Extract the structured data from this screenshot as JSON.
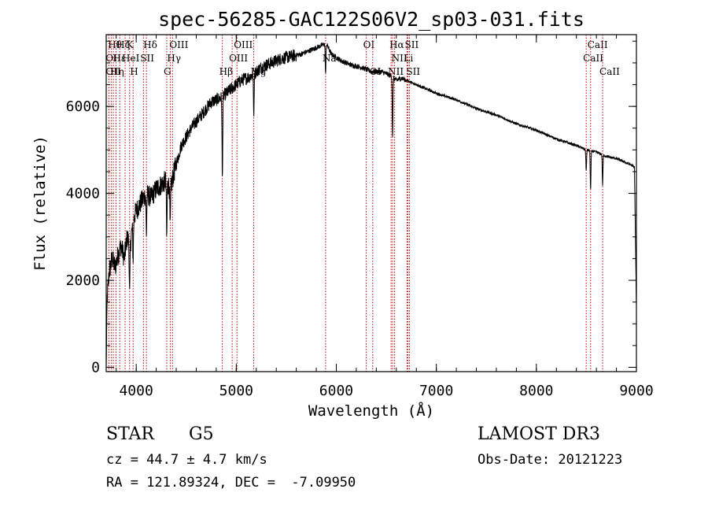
{
  "chart_data": {
    "type": "line",
    "title": "spec-56285-GAC122S06V2_sp03-031.fits",
    "xlabel": "Wavelength (Å)",
    "ylabel": "Flux (relative)",
    "xlim": [
      3700,
      9000
    ],
    "ylim": [
      -100,
      7650
    ],
    "x_ticks": [
      4000,
      5000,
      6000,
      7000,
      8000,
      9000
    ],
    "y_ticks": [
      0,
      2000,
      4000,
      6000
    ],
    "series": [
      {
        "name": "spectrum",
        "x": [
          3700,
          3710,
          3730,
          3760,
          3790,
          3820,
          3850,
          3880,
          3910,
          3940,
          3970,
          4000,
          4050,
          4100,
          4150,
          4200,
          4250,
          4300,
          4340,
          4380,
          4450,
          4550,
          4650,
          4750,
          4850,
          4950,
          5050,
          5150,
          5250,
          5350,
          5450,
          5550,
          5650,
          5750,
          5850,
          5900,
          5950,
          6050,
          6150,
          6250,
          6350,
          6450,
          6500,
          6550,
          6600,
          6650,
          6700,
          6800,
          6900,
          7000,
          7200,
          7400,
          7600,
          7800,
          8000,
          8200,
          8400,
          8500,
          8600,
          8700,
          8800,
          8900,
          8950,
          8980,
          9000
        ],
        "y": [
          0,
          1600,
          2200,
          2500,
          2300,
          2600,
          2800,
          2500,
          3000,
          2800,
          3400,
          3600,
          3800,
          4000,
          3900,
          4100,
          4200,
          4300,
          4100,
          4500,
          5100,
          5500,
          5800,
          6100,
          6200,
          6400,
          6600,
          6700,
          6900,
          7000,
          7100,
          7150,
          7200,
          7300,
          7400,
          7450,
          7200,
          7050,
          6950,
          6900,
          6800,
          6800,
          6750,
          6700,
          6600,
          6650,
          6600,
          6500,
          6400,
          6300,
          6150,
          5950,
          5800,
          5600,
          5450,
          5250,
          5100,
          5000,
          4950,
          4850,
          4800,
          4700,
          4650,
          4600,
          1400
        ]
      }
    ],
    "absorption_features": [
      {
        "wavelength": 3934,
        "depth": 1200
      },
      {
        "wavelength": 3969,
        "depth": 900
      },
      {
        "wavelength": 4102,
        "depth": 900
      },
      {
        "wavelength": 4305,
        "depth": 1300
      },
      {
        "wavelength": 4340,
        "depth": 900
      },
      {
        "wavelength": 4861,
        "depth": 1900
      },
      {
        "wavelength": 5175,
        "depth": 900
      },
      {
        "wavelength": 5893,
        "depth": 700
      },
      {
        "wavelength": 6563,
        "depth": 1400
      },
      {
        "wavelength": 8498,
        "depth": 500
      },
      {
        "wavelength": 8542,
        "depth": 900
      },
      {
        "wavelength": 8662,
        "depth": 700
      }
    ],
    "line_markers": [
      {
        "wavelength": 3727,
        "label": "OII",
        "row": 2
      },
      {
        "wavelength": 3727,
        "label": "OII",
        "row": 3
      },
      {
        "wavelength": 3750,
        "label": "Hθ",
        "row": 1
      },
      {
        "wavelength": 3771,
        "label": "Hη",
        "row": 3
      },
      {
        "wavelength": 3798,
        "label": "Hε",
        "row": 2
      },
      {
        "wavelength": 3835,
        "label": "Hζ",
        "row": 1
      },
      {
        "wavelength": 3889,
        "label": "HeI",
        "row": 2
      },
      {
        "wavelength": 3934,
        "label": "K",
        "row": 1
      },
      {
        "wavelength": 3969,
        "label": "H",
        "row": 3
      },
      {
        "wavelength": 4072,
        "label": "SII",
        "row": 2
      },
      {
        "wavelength": 4102,
        "label": "Hδ",
        "row": 1
      },
      {
        "wavelength": 4305,
        "label": "G",
        "row": 3
      },
      {
        "wavelength": 4340,
        "label": "Hγ",
        "row": 2
      },
      {
        "wavelength": 4363,
        "label": "OIII",
        "row": 1
      },
      {
        "wavelength": 4861,
        "label": "Hβ",
        "row": 3
      },
      {
        "wavelength": 4959,
        "label": "OIII",
        "row": 2
      },
      {
        "wavelength": 5007,
        "label": "OIII",
        "row": 1
      },
      {
        "wavelength": 5175,
        "label": "Mg",
        "row": 3
      },
      {
        "wavelength": 5893,
        "label": "Na",
        "row": 2
      },
      {
        "wavelength": 6300,
        "label": "OI",
        "row": 1
      },
      {
        "wavelength": 6364,
        "label": "OI",
        "row": 3
      },
      {
        "wavelength": 6548,
        "label": "NII",
        "row": 3
      },
      {
        "wavelength": 6563,
        "label": "Hα",
        "row": 1
      },
      {
        "wavelength": 6583,
        "label": "NII",
        "row": 2
      },
      {
        "wavelength": 6707,
        "label": "Li",
        "row": 2
      },
      {
        "wavelength": 6716,
        "label": "SII",
        "row": 1
      },
      {
        "wavelength": 6731,
        "label": "SII",
        "row": 3
      },
      {
        "wavelength": 8498,
        "label": "CaII",
        "row": 2
      },
      {
        "wavelength": 8542,
        "label": "CaII",
        "row": 1
      },
      {
        "wavelength": 8662,
        "label": "CaII",
        "row": 3
      }
    ],
    "line_marker_color": "#c00000"
  },
  "info": {
    "class": "STAR",
    "subclass": "G5",
    "survey": "LAMOST DR3",
    "cz": "cz = 44.7 ± 4.7 km/s",
    "obs_date": "Obs-Date: 20121223",
    "coords": "RA = 121.89324, DEC =  -7.09950"
  }
}
